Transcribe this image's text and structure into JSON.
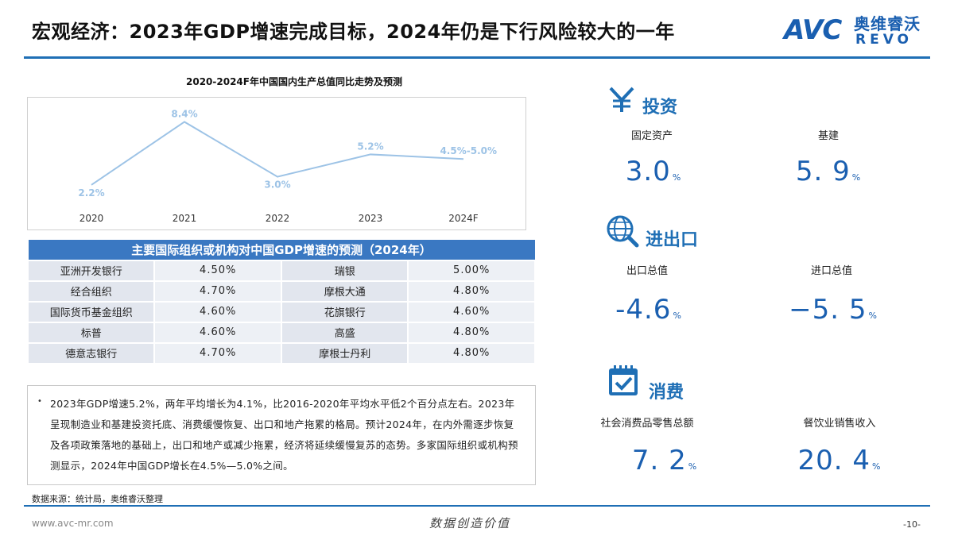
{
  "header": {
    "title": "宏观经济：2023年GDP增速完成目标，2024年仍是下行风险较大的一年",
    "logo_avc": "AVC",
    "logo_cn": "奥维睿沃",
    "logo_en": "REVO"
  },
  "chart": {
    "title": "2020-2024F年中国国内生产总值同比走势及预测"
  },
  "chart_data": {
    "type": "line",
    "title": "2020-2024F年中国国内生产总值同比走势及预测",
    "categories": [
      "2020",
      "2021",
      "2022",
      "2023",
      "2024F"
    ],
    "series": [
      {
        "values": [
          2.2,
          8.4,
          3.0,
          5.2,
          4.75
        ]
      }
    ],
    "data_labels": [
      "2.2%",
      "8.4%",
      "3.0%",
      "5.2%",
      "4.5%-5.0%"
    ],
    "ylim": [
      0,
      10
    ],
    "grid": false,
    "color": "#9dc3e6"
  },
  "forecast_table": {
    "header": "主要国际组织或机构对中国GDP增速的预测（2024年）",
    "rows": [
      {
        "org1": "亚洲开发银行",
        "val1": "4.50%",
        "org2": "瑞银",
        "val2": "5.00%"
      },
      {
        "org1": "经合组织",
        "val1": "4.70%",
        "org2": "摩根大通",
        "val2": "4.80%"
      },
      {
        "org1": "国际货币基金组织",
        "val1": "4.60%",
        "org2": "花旗银行",
        "val2": "4.60%"
      },
      {
        "org1": "标普",
        "val1": "4.60%",
        "org2": "高盛",
        "val2": "4.80%"
      },
      {
        "org1": "德意志银行",
        "val1": "4.70%",
        "org2": "摩根士丹利",
        "val2": "4.80%"
      }
    ]
  },
  "note": {
    "bullet": "•",
    "text": "2023年GDP增速5.2%，两年平均增长为4.1%，比2016-2020年平均水平低2个百分点左右。2023年呈现制造业和基建投资托底、消费缓慢恢复、出口和地产拖累的格局。预计2024年，在内外需逐步恢复及各项政策落地的基础上，出口和地产或减少拖累，经济将延续缓慢复苏的态势。多家国际组织或机构预测显示，2024年中国GDP增长在4.5%—5.0%之间。"
  },
  "source": "数据来源：统计局，奥维睿沃整理",
  "footer": {
    "url": "www.avc-mr.com",
    "slogan": "数据创造价值",
    "page": "-10-"
  },
  "sections": {
    "investment": {
      "title": "投资",
      "icon": "yen-icon",
      "m1_label": "固定资产",
      "m1_value": "3.0",
      "m1_unit": "%",
      "m2_label": "基建",
      "m2_value": "5. 9",
      "m2_unit": "%"
    },
    "trade": {
      "title": "进出口",
      "icon": "globe-search-icon",
      "m1_label": "出口总值",
      "m1_value": "-4.6",
      "m1_unit": "%",
      "m2_label": "进口总值",
      "m2_value": "−5. 5",
      "m2_unit": "%"
    },
    "consumption": {
      "title": "消费",
      "icon": "calendar-check-icon",
      "m1_label": "社会消费品零售总额",
      "m1_value": "7. 2",
      "m1_unit": "%",
      "m2_label": "餐饮业销售收入",
      "m2_value": "20. 4",
      "m2_unit": "%"
    }
  }
}
